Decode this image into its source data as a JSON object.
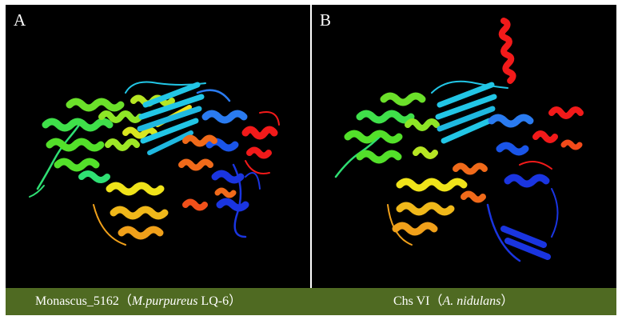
{
  "panels": [
    {
      "letter": "A",
      "caption_name": "Monascus_5162",
      "caption_open": "（",
      "caption_species": "M.purpureus",
      "caption_strain": " LQ-6",
      "caption_close": "）"
    },
    {
      "letter": "B",
      "caption_name": "Chs VI",
      "caption_open": "（",
      "caption_species": "A. nidulans",
      "caption_strain": "",
      "caption_close": "）"
    }
  ],
  "colors": {
    "panel_background": "#000000",
    "caption_bar": "#4f6a22",
    "caption_text": "#ffffff",
    "rainbow": [
      "#1a35e0",
      "#2a7bf0",
      "#22c6e6",
      "#2fdf73",
      "#53e02a",
      "#b6e623",
      "#f0e31a",
      "#f0a01a",
      "#f06a1a",
      "#f21a1a"
    ]
  },
  "illustration": {
    "panel_a": "rainbow-colored ribbon protein structure",
    "panel_b": "rainbow-colored ribbon protein structure with long red helix"
  }
}
